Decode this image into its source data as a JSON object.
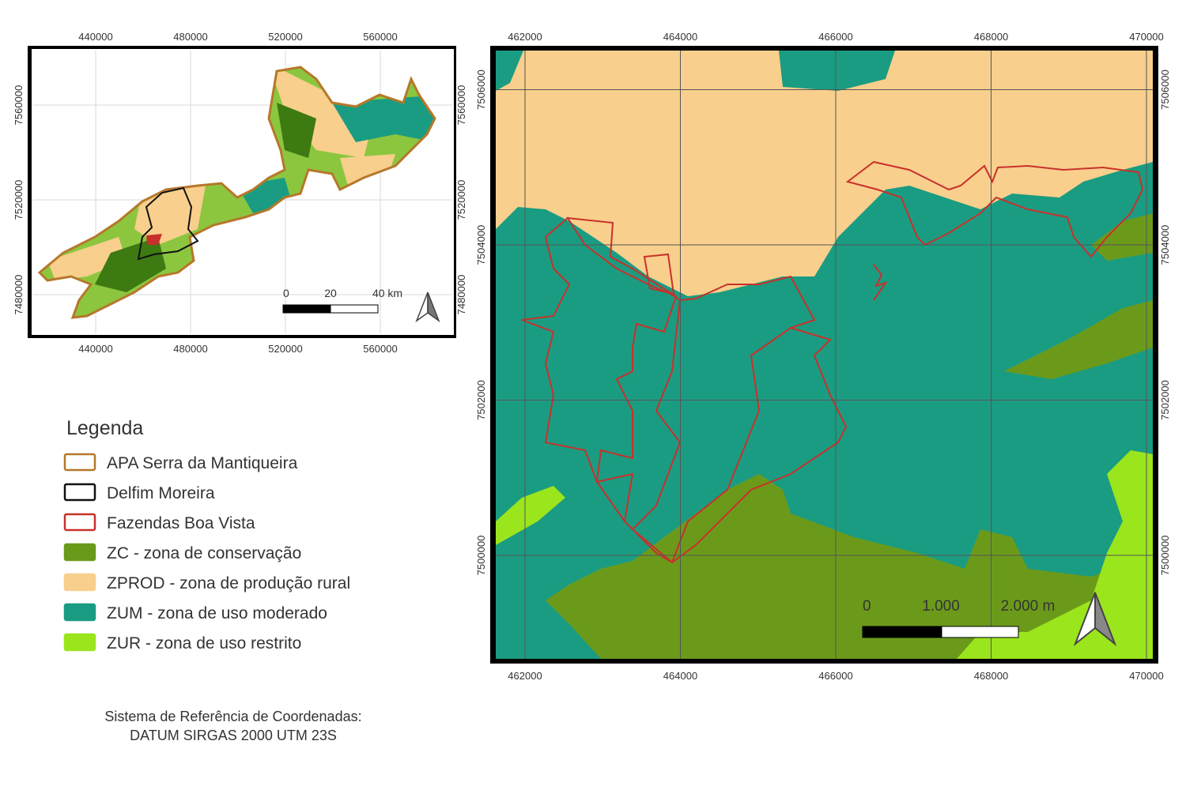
{
  "inset_map": {
    "x_labels": [
      440000,
      480000,
      520000,
      560000
    ],
    "y_labels": [
      7480000,
      7520000,
      7560000
    ],
    "scale_labels": [
      "0",
      "20",
      "40 km"
    ]
  },
  "main_map": {
    "x_labels": [
      462000,
      464000,
      466000,
      468000,
      470000
    ],
    "y_labels": [
      7500000,
      7502000,
      7504000,
      7506000
    ],
    "scale_labels": [
      "0",
      "1.000",
      "2.000 m"
    ]
  },
  "legend": {
    "title": "Legenda",
    "items": [
      {
        "label": "APA Serra da Mantiqueira",
        "fill": "#ffffff",
        "stroke": "#b5782a"
      },
      {
        "label": "Delfim Moreira",
        "fill": "#ffffff",
        "stroke": "#111111"
      },
      {
        "label": "Fazendas Boa Vista",
        "fill": "#ffffff",
        "stroke": "#c8312b"
      },
      {
        "label": "ZC - zona de conservação",
        "fill": "#6b9a1a",
        "stroke": "#6b9a1a"
      },
      {
        "label": "ZPROD - zona de produção rural",
        "fill": "#f8cf8c",
        "stroke": "#f8cf8c"
      },
      {
        "label": "ZUM - zona de uso moderado",
        "fill": "#1a9c82",
        "stroke": "#1a9c82"
      },
      {
        "label": "ZUR - zona de uso restrito",
        "fill": "#9be51d",
        "stroke": "#9be51d"
      }
    ]
  },
  "crs": {
    "line1": "Sistema de Referência de Coordenadas:",
    "line2": "DATUM SIRGAS 2000 UTM 23S"
  }
}
